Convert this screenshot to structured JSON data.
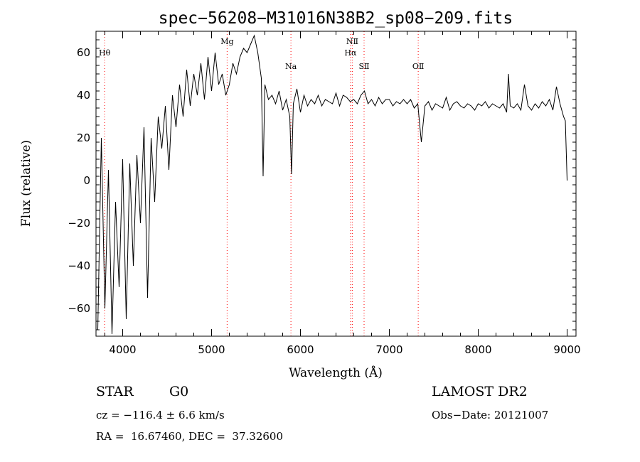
{
  "chart_data": {
    "type": "line",
    "title": "spec−56208−M31016N38B2_sp08−209.fits",
    "xlabel": "Wavelength (Å)",
    "ylabel": "Flux (relative)",
    "xlim": [
      3700,
      9100
    ],
    "ylim": [
      -73,
      70
    ],
    "xticks": [
      4000,
      5000,
      6000,
      7000,
      8000,
      9000
    ],
    "yticks": [
      60,
      40,
      20,
      0,
      -20,
      -40,
      -60
    ],
    "ytick_labels": [
      "60",
      "40",
      "20",
      "0",
      "−20",
      "−40",
      "−60"
    ],
    "grid": false,
    "series": [
      {
        "x": [
          3720,
          3760,
          3800,
          3840,
          3880,
          3920,
          3960,
          4000,
          4040,
          4080,
          4120,
          4160,
          4200,
          4240,
          4280,
          4320,
          4360,
          4400,
          4440,
          4480,
          4520,
          4560,
          4600,
          4640,
          4680,
          4720,
          4760,
          4800,
          4840,
          4880,
          4920,
          4960,
          5000,
          5040,
          5080,
          5120,
          5160,
          5200,
          5240,
          5280,
          5320,
          5360,
          5400,
          5440,
          5480,
          5520,
          5560,
          5580,
          5600,
          5640,
          5680,
          5720,
          5760,
          5800,
          5840,
          5880,
          5900,
          5920,
          5960,
          6000,
          6040,
          6080,
          6120,
          6160,
          6200,
          6240,
          6280,
          6320,
          6360,
          6400,
          6440,
          6480,
          6520,
          6560,
          6600,
          6640,
          6680,
          6720,
          6760,
          6800,
          6840,
          6880,
          6920,
          6960,
          7000,
          7040,
          7080,
          7120,
          7160,
          7200,
          7240,
          7280,
          7320,
          7360,
          7400,
          7440,
          7480,
          7520,
          7560,
          7600,
          7640,
          7680,
          7720,
          7760,
          7800,
          7840,
          7880,
          7920,
          7960,
          8000,
          8040,
          8080,
          8120,
          8160,
          8200,
          8240,
          8280,
          8320,
          8340,
          8360,
          8400,
          8440,
          8480,
          8520,
          8560,
          8600,
          8640,
          8680,
          8720,
          8760,
          8800,
          8840,
          8880,
          8920,
          8960,
          8980,
          9000
        ],
        "y": [
          -70,
          20,
          -60,
          5,
          -72,
          -10,
          -50,
          10,
          -65,
          8,
          -40,
          12,
          -20,
          25,
          -55,
          20,
          -10,
          30,
          15,
          35,
          5,
          40,
          25,
          45,
          30,
          52,
          35,
          50,
          40,
          55,
          38,
          58,
          42,
          60,
          45,
          50,
          40,
          45,
          55,
          50,
          58,
          62,
          60,
          64,
          68,
          60,
          48,
          2,
          45,
          38,
          40,
          36,
          42,
          33,
          38,
          30,
          3,
          36,
          43,
          32,
          40,
          35,
          38,
          36,
          40,
          35,
          38,
          37,
          36,
          41,
          35,
          40,
          39,
          37,
          38,
          36,
          40,
          42,
          36,
          38,
          35,
          39,
          36,
          38,
          38,
          35,
          37,
          36,
          38,
          36,
          38,
          34,
          36,
          18,
          35,
          37,
          33,
          36,
          35,
          34,
          39,
          33,
          36,
          37,
          35,
          34,
          36,
          35,
          33,
          36,
          35,
          37,
          34,
          36,
          35,
          34,
          36,
          32,
          50,
          35,
          34,
          36,
          33,
          45,
          35,
          33,
          36,
          34,
          37,
          35,
          38,
          33,
          44,
          36,
          30,
          28,
          0
        ]
      }
    ],
    "annotations": [
      {
        "label": "Hθ",
        "x": 3797,
        "row": 1
      },
      {
        "label": "Mg",
        "x": 5175,
        "row": 0
      },
      {
        "label": "Na",
        "x": 5893,
        "row": 2
      },
      {
        "label": "NⅡ",
        "x": 6583,
        "row": 0
      },
      {
        "label": "Hα",
        "x": 6563,
        "row": 1
      },
      {
        "label": "SⅡ",
        "x": 6716,
        "row": 2
      },
      {
        "label": "OⅡ",
        "x": 7325,
        "row": 2
      }
    ],
    "line_marker_color": "#ff0000"
  },
  "info": {
    "object_class": "STAR",
    "subclass": "G0",
    "cz": "cz = −116.4 ± 6.6 km/s",
    "coords": "RA =  16.67460, DEC =  37.32600",
    "survey": "LAMOST DR2",
    "obs_date": "Obs−Date: 20121007"
  }
}
